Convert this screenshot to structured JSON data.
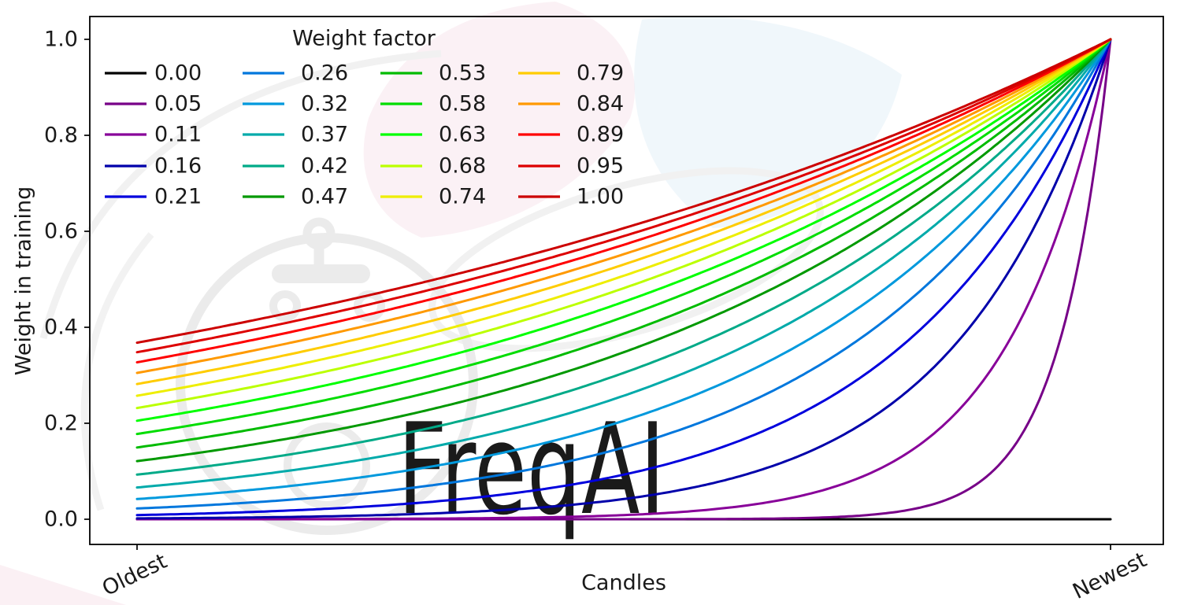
{
  "figure": {
    "background_color": "#ffffff",
    "watermark": {
      "text": "FreqAI",
      "color": "#ededed"
    },
    "axes": {
      "xlabel": "Candles",
      "ylabel": "Weight in training",
      "x_tick_labels": [
        "Oldest",
        "Newest"
      ],
      "y_tick_labels": [
        "0.0",
        "0.2",
        "0.4",
        "0.6",
        "0.8",
        "1.0"
      ],
      "frame_color": "#000000"
    },
    "legend": {
      "title": "Weight factor",
      "columns": 4,
      "rows": 5
    }
  },
  "chart_data": {
    "type": "line",
    "title": "",
    "xlabel": "Candles",
    "ylabel": "Weight in training",
    "xlim_labels": [
      "Oldest",
      "Newest"
    ],
    "ylim": [
      0,
      1
    ],
    "grid": false,
    "legend_title": "Weight factor",
    "legend_position": "upper left",
    "formula": "weight(x) = exp(-(1 - x) / weight_factor) with x normalized from 0 (Oldest) to 1 (Newest); weight_factor = 0 yields weight = 0",
    "x": [
      0,
      0.2,
      0.4,
      0.6,
      0.8,
      1.0
    ],
    "series": [
      {
        "label": "0.00",
        "weight_factor": 0,
        "color": "#000000",
        "values": [
          0,
          0,
          0,
          0,
          0,
          0
        ]
      },
      {
        "label": "0.05",
        "weight_factor": 0.0526,
        "color": "#770088",
        "values": [
          0,
          0,
          0,
          0.0005,
          0.0224,
          1
        ]
      },
      {
        "label": "0.11",
        "weight_factor": 0.1053,
        "color": "#880099",
        "values": [
          0.0001,
          0.0005,
          0.0033,
          0.0224,
          0.1496,
          1
        ]
      },
      {
        "label": "0.16",
        "weight_factor": 0.1579,
        "color": "#0000AA",
        "values": [
          0.0018,
          0.0063,
          0.0224,
          0.0794,
          0.2817,
          1
        ]
      },
      {
        "label": "0.21",
        "weight_factor": 0.2105,
        "color": "#0000DD",
        "values": [
          0.0087,
          0.0224,
          0.0578,
          0.1496,
          0.3867,
          1
        ]
      },
      {
        "label": "0.26",
        "weight_factor": 0.2632,
        "color": "#0077DD",
        "values": [
          0.0224,
          0.0478,
          0.1023,
          0.2187,
          0.4677,
          1
        ]
      },
      {
        "label": "0.32",
        "weight_factor": 0.3158,
        "color": "#0099DD",
        "values": [
          0.0421,
          0.0794,
          0.1496,
          0.2817,
          0.5309,
          1
        ]
      },
      {
        "label": "0.37",
        "weight_factor": 0.3684,
        "color": "#00AAAA",
        "values": [
          0.0663,
          0.114,
          0.1962,
          0.3376,
          0.5811,
          1
        ]
      },
      {
        "label": "0.42",
        "weight_factor": 0.4211,
        "color": "#00AA88",
        "values": [
          0.093,
          0.1496,
          0.2405,
          0.3867,
          0.6219,
          1
        ]
      },
      {
        "label": "0.47",
        "weight_factor": 0.4737,
        "color": "#009900",
        "values": [
          0.1211,
          0.1847,
          0.2817,
          0.4298,
          0.6556,
          1
        ]
      },
      {
        "label": "0.53",
        "weight_factor": 0.5263,
        "color": "#00BB00",
        "values": [
          0.1496,
          0.2187,
          0.3198,
          0.4677,
          0.6839,
          1
        ]
      },
      {
        "label": "0.58",
        "weight_factor": 0.5789,
        "color": "#00DD00",
        "values": [
          0.1778,
          0.2511,
          0.3547,
          0.5011,
          0.7079,
          1
        ]
      },
      {
        "label": "0.63",
        "weight_factor": 0.6316,
        "color": "#00FF00",
        "values": [
          0.2053,
          0.2817,
          0.3867,
          0.5309,
          0.7286,
          1
        ]
      },
      {
        "label": "0.68",
        "weight_factor": 0.6842,
        "color": "#BBFF00",
        "values": [
          0.2319,
          0.3106,
          0.4161,
          0.5573,
          0.7465,
          1
        ]
      },
      {
        "label": "0.74",
        "weight_factor": 0.7368,
        "color": "#EEEE00",
        "values": [
          0.2574,
          0.3376,
          0.443,
          0.5811,
          0.7623,
          1
        ]
      },
      {
        "label": "0.79",
        "weight_factor": 0.7895,
        "color": "#FFCC00",
        "values": [
          0.2817,
          0.363,
          0.4677,
          0.6025,
          0.7762,
          1
        ]
      },
      {
        "label": "0.84",
        "weight_factor": 0.8421,
        "color": "#FF9900",
        "values": [
          0.305,
          0.3867,
          0.4904,
          0.6219,
          0.7886,
          1
        ]
      },
      {
        "label": "0.89",
        "weight_factor": 0.8947,
        "color": "#FF0000",
        "values": [
          0.3271,
          0.409,
          0.5114,
          0.6395,
          0.7997,
          1
        ]
      },
      {
        "label": "0.95",
        "weight_factor": 0.9474,
        "color": "#DD0000",
        "values": [
          0.348,
          0.4298,
          0.5309,
          0.6556,
          0.8097,
          1
        ]
      },
      {
        "label": "1.00",
        "weight_factor": 1.0,
        "color": "#CC0000",
        "values": [
          0.3679,
          0.4493,
          0.5488,
          0.6703,
          0.8187,
          1
        ]
      }
    ]
  }
}
